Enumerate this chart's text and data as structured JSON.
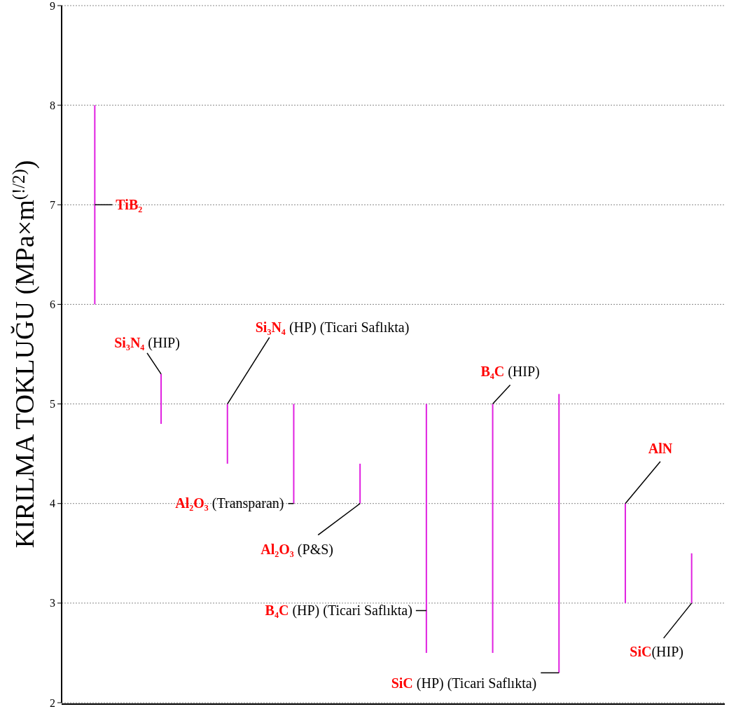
{
  "chart_data": {
    "type": "bar",
    "ylabel": "KIRILMA TOKLUĞU (MPa×m$^{(!/2)}$)",
    "categories": [
      null,
      null,
      null,
      null,
      null,
      null,
      null,
      null,
      null,
      null
    ],
    "base": [
      6,
      4.8,
      4.4,
      4,
      4,
      2.5,
      2.5,
      2.3,
      3,
      3
    ],
    "values": [
      2,
      0.5,
      0.6,
      1,
      0.4,
      2.5,
      2.5,
      2.8,
      1,
      0.5
    ],
    "color": "#e020e0",
    "ylim": [
      2,
      9
    ],
    "yticks": [
      2,
      3,
      4,
      5,
      6,
      7,
      8,
      9
    ],
    "grid": "y",
    "tick_labels": "y",
    "annotations": [
      "TiB₂",
      "Si₃N₄ (HIP)",
      "Si₃N₄ (HP) (Ticari Saflıkta)",
      "Al₂O₃ (Transparan)",
      "Al₂O₃ (P&S)",
      "B₄C (HP) (Ticari Saflıkta)",
      "B₄C (HIP)",
      "SiC (HP) (Ticari Saflıkta)",
      "AlN",
      "SiC(HIP)"
    ]
  }
}
